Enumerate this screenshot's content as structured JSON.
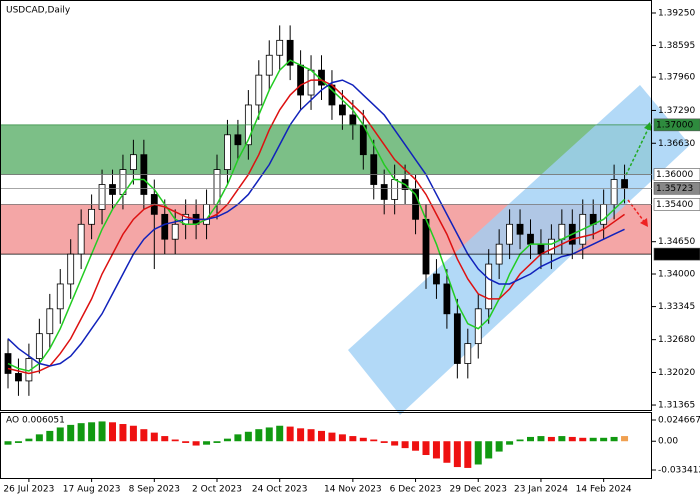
{
  "chart_data": {
    "type": "candlestick",
    "title": "USDCAD,Daily",
    "categories": [
      null,
      null,
      "26 Jul 2023",
      null,
      null,
      null,
      null,
      null,
      "17 Aug 2023",
      null,
      null,
      null,
      null,
      null,
      "8 Sep 2023",
      null,
      null,
      null,
      null,
      null,
      "2 Oct 2023",
      null,
      null,
      null,
      null,
      null,
      "24 Oct 2023",
      null,
      null,
      null,
      null,
      null,
      null,
      "14 Nov 2023",
      null,
      null,
      null,
      null,
      null,
      "6 Dec 2023",
      null,
      null,
      null,
      null,
      null,
      "29 Dec 2023",
      null,
      null,
      null,
      null,
      null,
      "23 Jan 2024",
      null,
      null,
      null,
      null,
      null,
      "14 Feb 2024",
      null,
      null
    ],
    "open": [
      1.324,
      1.32,
      1.3185,
      1.323,
      1.328,
      1.333,
      1.338,
      1.344,
      1.35,
      1.353,
      1.358,
      1.356,
      1.361,
      1.364,
      1.356,
      1.352,
      1.347,
      1.35,
      1.352,
      1.35,
      1.354,
      1.361,
      1.368,
      1.366,
      1.374,
      1.38,
      1.384,
      1.387,
      1.382,
      1.376,
      1.381,
      1.378,
      1.374,
      1.372,
      1.37,
      1.364,
      1.358,
      1.355,
      1.359,
      1.357,
      1.351,
      1.34,
      1.338,
      1.332,
      1.322,
      1.326,
      1.333,
      1.342,
      1.346,
      1.35,
      1.348,
      1.346,
      1.344,
      1.347,
      1.35,
      1.346,
      1.352,
      1.35,
      1.354,
      1.359
    ],
    "high": [
      1.327,
      1.323,
      1.326,
      1.331,
      1.336,
      1.341,
      1.347,
      1.353,
      1.356,
      1.361,
      1.361,
      1.364,
      1.367,
      1.367,
      1.359,
      1.355,
      1.353,
      1.355,
      1.355,
      1.357,
      1.364,
      1.371,
      1.371,
      1.377,
      1.383,
      1.387,
      1.39,
      1.39,
      1.385,
      1.384,
      1.384,
      1.381,
      1.377,
      1.375,
      1.373,
      1.367,
      1.361,
      1.362,
      1.362,
      1.36,
      1.354,
      1.343,
      1.341,
      1.335,
      1.329,
      1.336,
      1.345,
      1.349,
      1.353,
      1.353,
      1.351,
      1.349,
      1.35,
      1.353,
      1.353,
      1.355,
      1.355,
      1.357,
      1.362,
      1.362
    ],
    "low": [
      1.317,
      1.3155,
      1.3155,
      1.32,
      1.325,
      1.33,
      1.335,
      1.341,
      1.347,
      1.35,
      1.353,
      1.353,
      1.358,
      1.353,
      1.341,
      1.344,
      1.344,
      1.347,
      1.347,
      1.347,
      1.351,
      1.358,
      1.363,
      1.363,
      1.371,
      1.377,
      1.381,
      1.379,
      1.373,
      1.373,
      1.375,
      1.371,
      1.369,
      1.367,
      1.361,
      1.355,
      1.352,
      1.352,
      1.354,
      1.348,
      1.337,
      1.335,
      1.329,
      1.319,
      1.319,
      1.323,
      1.33,
      1.339,
      1.343,
      1.345,
      1.343,
      1.341,
      1.341,
      1.344,
      1.343,
      1.343,
      1.347,
      1.347,
      1.351,
      1.3542
    ],
    "close": [
      1.32,
      1.3185,
      1.323,
      1.328,
      1.333,
      1.338,
      1.344,
      1.35,
      1.353,
      1.358,
      1.356,
      1.361,
      1.364,
      1.356,
      1.352,
      1.347,
      1.35,
      1.352,
      1.35,
      1.354,
      1.361,
      1.368,
      1.366,
      1.374,
      1.38,
      1.384,
      1.387,
      1.382,
      1.376,
      1.381,
      1.378,
      1.374,
      1.372,
      1.37,
      1.364,
      1.358,
      1.355,
      1.359,
      1.357,
      1.351,
      1.34,
      1.338,
      1.332,
      1.322,
      1.326,
      1.333,
      1.342,
      1.346,
      1.35,
      1.348,
      1.346,
      1.344,
      1.347,
      1.35,
      1.346,
      1.352,
      1.35,
      1.354,
      1.359,
      1.3572
    ],
    "series": [
      {
        "color": "#22cc22",
        "values": [
          1.322,
          1.321,
          1.3205,
          1.322,
          1.325,
          1.329,
          1.334,
          1.339,
          1.344,
          1.349,
          1.353,
          1.356,
          1.359,
          1.359,
          1.357,
          1.354,
          1.351,
          1.35,
          1.35,
          1.351,
          1.354,
          1.358,
          1.363,
          1.367,
          1.372,
          1.377,
          1.381,
          1.383,
          1.382,
          1.381,
          1.379,
          1.377,
          1.375,
          1.373,
          1.37,
          1.366,
          1.362,
          1.359,
          1.358,
          1.356,
          1.351,
          1.346,
          1.34,
          1.334,
          1.33,
          1.329,
          1.331,
          1.335,
          1.34,
          1.344,
          1.346,
          1.346,
          1.346,
          1.347,
          1.348,
          1.349,
          1.35,
          1.351,
          1.353,
          1.355
        ]
      },
      {
        "color": "#dd1111",
        "values": [
          1.321,
          1.3205,
          1.32,
          1.3205,
          1.3215,
          1.324,
          1.327,
          1.331,
          1.335,
          1.34,
          1.344,
          1.348,
          1.351,
          1.353,
          1.354,
          1.3535,
          1.3525,
          1.3515,
          1.351,
          1.351,
          1.352,
          1.354,
          1.357,
          1.36,
          1.364,
          1.369,
          1.373,
          1.376,
          1.378,
          1.379,
          1.379,
          1.378,
          1.376,
          1.374,
          1.372,
          1.369,
          1.366,
          1.363,
          1.361,
          1.359,
          1.356,
          1.352,
          1.348,
          1.343,
          1.339,
          1.336,
          1.335,
          1.335,
          1.337,
          1.34,
          1.342,
          1.344,
          1.345,
          1.346,
          1.347,
          1.3475,
          1.348,
          1.349,
          1.3505,
          1.352
        ]
      },
      {
        "color": "#1122bb",
        "values": [
          1.327,
          1.325,
          1.3235,
          1.322,
          1.3215,
          1.322,
          1.3235,
          1.326,
          1.329,
          1.332,
          1.336,
          1.34,
          1.344,
          1.347,
          1.349,
          1.35,
          1.3505,
          1.351,
          1.351,
          1.351,
          1.3515,
          1.3525,
          1.354,
          1.356,
          1.359,
          1.362,
          1.366,
          1.37,
          1.373,
          1.375,
          1.377,
          1.3785,
          1.379,
          1.378,
          1.376,
          1.374,
          1.372,
          1.369,
          1.366,
          1.363,
          1.36,
          1.356,
          1.352,
          1.348,
          1.344,
          1.341,
          1.339,
          1.338,
          1.338,
          1.339,
          1.34,
          1.3415,
          1.3425,
          1.3435,
          1.344,
          1.345,
          1.346,
          1.347,
          1.348,
          1.349
        ]
      }
    ],
    "ylim": [
      1.31265,
      1.39491
    ],
    "yticks": [
      {
        "value": 1.3925,
        "label": "1.39250"
      },
      {
        "value": 1.38595,
        "label": "1.38595"
      },
      {
        "value": 1.3796,
        "label": "1.37960"
      },
      {
        "value": 1.3729,
        "label": "1.37290"
      },
      {
        "value": 1.3663,
        "label": "1.36630"
      },
      {
        "value": 1.3465,
        "label": "1.34650"
      },
      {
        "value": 1.34,
        "label": "1.34000"
      },
      {
        "value": 1.33345,
        "label": "1.33345"
      },
      {
        "value": 1.3268,
        "label": "1.32680"
      },
      {
        "value": 1.3202,
        "label": "1.32020"
      },
      {
        "value": 1.31365,
        "label": "1.31365"
      }
    ],
    "zones": [
      {
        "from": 1.36,
        "to": 1.37,
        "color": "#7cbf87"
      },
      {
        "from": 1.344,
        "to": 1.354,
        "color": "#f4a6a6"
      }
    ],
    "levels": [
      {
        "value": 1.37,
        "label": "1.37000",
        "color": "#2e8b3e"
      },
      {
        "value": 1.36,
        "label": "1.36000",
        "color": "#ffffff"
      },
      {
        "value": 1.35723,
        "label": "1.35723",
        "color": "#888888"
      },
      {
        "value": 1.354,
        "label": "1.35400",
        "color": "#ffffff"
      },
      {
        "value": 1.344,
        "label": "1.34400",
        "color": "#000000"
      }
    ],
    "ao": {
      "label": "AO 0.006051",
      "values": [
        -0.004,
        -0.002,
        0.003,
        0.008,
        0.012,
        0.016,
        0.019,
        0.021,
        0.022,
        0.023,
        0.022,
        0.02,
        0.018,
        0.014,
        0.01,
        0.006,
        0.002,
        -0.002,
        -0.005,
        -0.004,
        -0.002,
        0.003,
        0.008,
        0.011,
        0.014,
        0.016,
        0.018,
        0.017,
        0.015,
        0.014,
        0.012,
        0.01,
        0.008,
        0.006,
        0.004,
        0.002,
        -0.002,
        -0.005,
        -0.008,
        -0.011,
        -0.016,
        -0.02,
        -0.025,
        -0.03,
        -0.031,
        -0.027,
        -0.02,
        -0.012,
        -0.004,
        0.002,
        0.005,
        0.006,
        0.005,
        0.006,
        0.005,
        0.004,
        0.004,
        0.004,
        0.005,
        0.006
      ],
      "up_color": "#119911",
      "down_color": "#ee1111",
      "last_color": "#f0a050",
      "ylim": [
        -0.0427,
        0.0328
      ],
      "yticks": [
        {
          "value": 0.024667,
          "label": "0.024667"
        },
        {
          "value": 0,
          "label": "0.00"
        },
        {
          "value": -0.033412,
          "label": "-0.033412"
        }
      ]
    }
  }
}
